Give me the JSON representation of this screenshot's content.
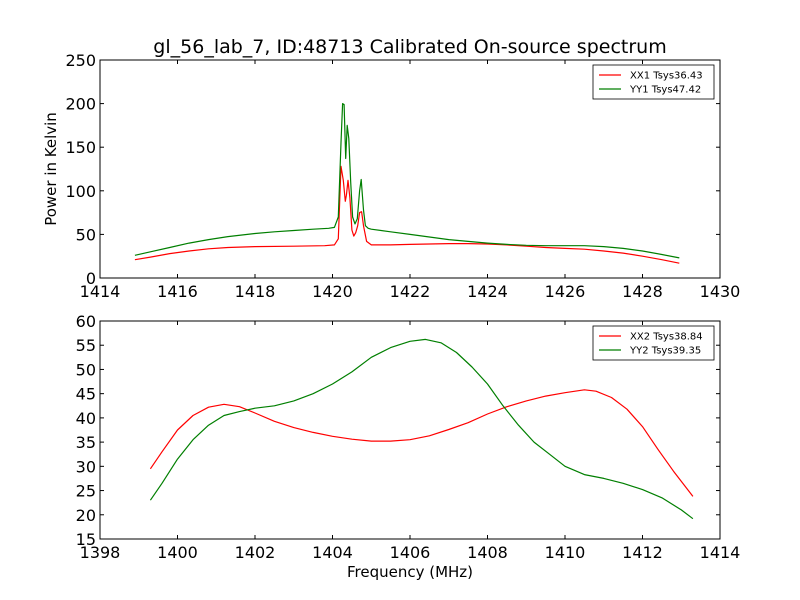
{
  "title": "gl_56_lab_7, ID:48713 Calibrated On-source spectrum",
  "colors": {
    "red": "#ff0000",
    "green": "#007f00"
  },
  "chart_data": [
    {
      "type": "line",
      "xlim": [
        1414,
        1430
      ],
      "ylim": [
        0,
        250
      ],
      "xticks": [
        "1414",
        "1416",
        "1418",
        "1420",
        "1422",
        "1424",
        "1426",
        "1428",
        "1430"
      ],
      "yticks": [
        "0",
        "50",
        "100",
        "150",
        "200",
        "250"
      ],
      "xlabel": "",
      "ylabel": "Power in Kelvin",
      "legend_position": "top-right",
      "series": [
        {
          "name": "XX1 Tsys36.43",
          "color": "red",
          "x": [
            1414.9,
            1415.3,
            1415.8,
            1416.3,
            1416.8,
            1417.3,
            1418.0,
            1419.0,
            1419.8,
            1420.05,
            1420.15,
            1420.22,
            1420.28,
            1420.33,
            1420.36,
            1420.4,
            1420.45,
            1420.5,
            1420.55,
            1420.6,
            1420.65,
            1420.7,
            1420.75,
            1420.8,
            1420.88,
            1421.0,
            1421.5,
            1422.0,
            1422.5,
            1423.0,
            1423.5,
            1424.0,
            1424.5,
            1425.0,
            1425.5,
            1426.0,
            1426.5,
            1427.0,
            1427.5,
            1428.0,
            1428.5,
            1428.95
          ],
          "y": [
            21,
            24,
            28,
            31,
            33.5,
            35,
            36,
            36.5,
            37,
            38,
            45,
            128,
            112,
            88,
            95,
            112,
            92,
            55,
            48,
            52,
            60,
            75,
            76,
            60,
            42,
            38,
            38,
            38.5,
            39,
            39.5,
            39.5,
            39,
            38,
            36.5,
            35,
            34,
            33,
            31,
            28.5,
            25,
            21,
            17
          ]
        },
        {
          "name": "YY1 Tsys47.42",
          "color": "green",
          "x": [
            1414.9,
            1415.3,
            1415.8,
            1416.3,
            1416.8,
            1417.3,
            1418.0,
            1418.5,
            1419.0,
            1419.5,
            1419.9,
            1420.05,
            1420.15,
            1420.22,
            1420.26,
            1420.3,
            1420.34,
            1420.38,
            1420.42,
            1420.47,
            1420.52,
            1420.58,
            1420.64,
            1420.7,
            1420.74,
            1420.8,
            1420.85,
            1420.92,
            1421.0,
            1421.5,
            1422.0,
            1422.5,
            1423.0,
            1423.5,
            1424.0,
            1424.5,
            1425.0,
            1425.5,
            1426.0,
            1426.5,
            1427.0,
            1427.5,
            1428.0,
            1428.5,
            1428.95
          ],
          "y": [
            26,
            30,
            35,
            40,
            44,
            47.5,
            51,
            53,
            54.5,
            56,
            57,
            58,
            70,
            155,
            200,
            199,
            137,
            175,
            160,
            110,
            70,
            62,
            68,
            100,
            113,
            78,
            60,
            57,
            56,
            53,
            50,
            47,
            44,
            42,
            40,
            38.5,
            37.5,
            37,
            37,
            37,
            36,
            34,
            31,
            27,
            23
          ]
        }
      ]
    },
    {
      "type": "line",
      "xlim": [
        1398,
        1414
      ],
      "ylim": [
        15,
        60
      ],
      "xticks": [
        "1398",
        "1400",
        "1402",
        "1404",
        "1406",
        "1408",
        "1410",
        "1412",
        "1414"
      ],
      "yticks": [
        "15",
        "20",
        "25",
        "30",
        "35",
        "40",
        "45",
        "50",
        "55",
        "60"
      ],
      "xlabel": "Frequency (MHz)",
      "ylabel": "",
      "legend_position": "top-right",
      "series": [
        {
          "name": "XX2 Tsys38.84",
          "color": "red",
          "x": [
            1399.3,
            1399.6,
            1400.0,
            1400.4,
            1400.8,
            1401.2,
            1401.6,
            1402.0,
            1402.5,
            1403.0,
            1403.5,
            1404.0,
            1404.5,
            1405.0,
            1405.5,
            1406.0,
            1406.5,
            1407.0,
            1407.5,
            1408.0,
            1408.5,
            1409.0,
            1409.5,
            1410.0,
            1410.5,
            1410.8,
            1411.2,
            1411.6,
            1412.0,
            1412.4,
            1412.8,
            1413.3
          ],
          "y": [
            29.5,
            33,
            37.5,
            40.5,
            42.2,
            42.8,
            42.3,
            41,
            39.3,
            38,
            37,
            36.2,
            35.6,
            35.2,
            35.2,
            35.5,
            36.3,
            37.6,
            39,
            40.8,
            42.3,
            43.5,
            44.5,
            45.2,
            45.8,
            45.5,
            44.2,
            41.8,
            38.2,
            33.5,
            29,
            23.8
          ]
        },
        {
          "name": "YY2 Tsys39.35",
          "color": "green",
          "x": [
            1399.3,
            1399.6,
            1400.0,
            1400.4,
            1400.8,
            1401.2,
            1401.6,
            1402.0,
            1402.5,
            1403.0,
            1403.5,
            1404.0,
            1404.5,
            1405.0,
            1405.5,
            1406.0,
            1406.4,
            1406.8,
            1407.2,
            1407.6,
            1408.0,
            1408.4,
            1408.8,
            1409.2,
            1409.6,
            1410.0,
            1410.5,
            1411.0,
            1411.5,
            1412.0,
            1412.5,
            1413.0,
            1413.3
          ],
          "y": [
            23,
            26.5,
            31.5,
            35.5,
            38.5,
            40.5,
            41.3,
            42,
            42.5,
            43.5,
            45,
            47,
            49.5,
            52.5,
            54.5,
            55.8,
            56.2,
            55.5,
            53.5,
            50.5,
            47,
            42.5,
            38.5,
            35,
            32.5,
            30,
            28.3,
            27.5,
            26.5,
            25.2,
            23.5,
            21,
            19.2
          ]
        }
      ]
    }
  ]
}
